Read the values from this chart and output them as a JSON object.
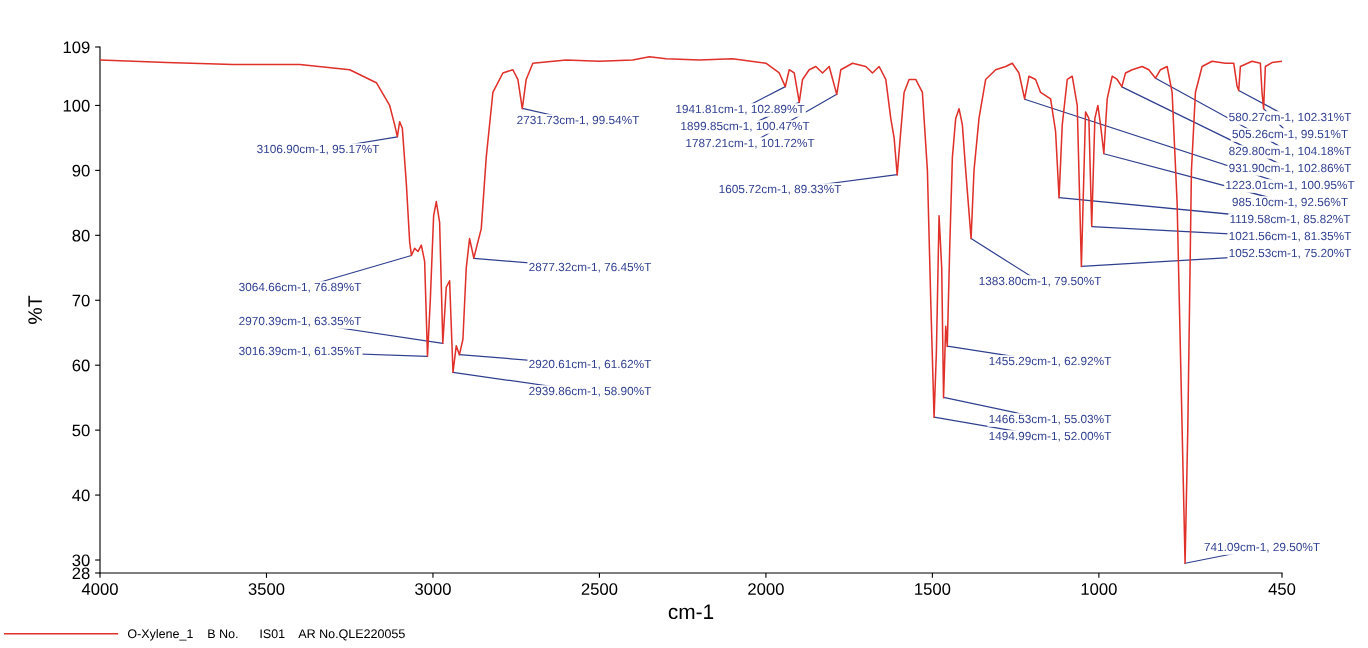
{
  "chart_data": {
    "type": "line",
    "xlabel": "cm-1",
    "ylabel": "%T",
    "xlim": [
      4000,
      450
    ],
    "xticks": [
      4000,
      3500,
      3000,
      2500,
      2000,
      1500,
      1000,
      450
    ],
    "ylim": [
      28,
      109
    ],
    "yticks": [
      28,
      30,
      40,
      50,
      60,
      70,
      80,
      90,
      100,
      109
    ],
    "grid": false,
    "legend": "bottom left",
    "marker": "none",
    "line_style": "solid",
    "series": [
      {
        "name": "O-Xylene_1    B No.      IS01    AR No.QLE220055",
        "color": "#e0302a",
        "x": [
          4000,
          3800,
          3600,
          3400,
          3250,
          3170,
          3130,
          3115,
          3106.9,
          3100,
          3092,
          3080,
          3070,
          3064.66,
          3055,
          3045,
          3035,
          3025,
          3016.39,
          3008,
          2998,
          2990,
          2980,
          2970.39,
          2960,
          2950,
          2939.86,
          2930,
          2920.61,
          2910,
          2900,
          2890,
          2877.32,
          2865,
          2855,
          2840,
          2820,
          2790,
          2760,
          2745,
          2731.73,
          2720,
          2700,
          2600,
          2500,
          2400,
          2350,
          2300,
          2200,
          2100,
          2000,
          1960,
          1941.81,
          1930,
          1915,
          1899.85,
          1890,
          1870,
          1850,
          1830,
          1810,
          1787.21,
          1775,
          1740,
          1700,
          1680,
          1660,
          1640,
          1625,
          1615,
          1605.72,
          1595,
          1585,
          1570,
          1550,
          1530,
          1515,
          1505,
          1494.99,
          1488,
          1480,
          1472,
          1466.53,
          1460,
          1455.29,
          1448,
          1440,
          1430,
          1420,
          1410,
          1400,
          1383.8,
          1375,
          1360,
          1340,
          1310,
          1280,
          1260,
          1240,
          1223.01,
          1210,
          1190,
          1175,
          1160,
          1145,
          1130,
          1119.58,
          1110,
          1095,
          1080,
          1065,
          1052.53,
          1040,
          1030,
          1021.56,
          1012,
          1003,
          995,
          985.1,
          975,
          960,
          945,
          931,
          920,
          900,
          870,
          850,
          829.8,
          815,
          795,
          780,
          765,
          752,
          741.09,
          733,
          722,
          710,
          690,
          660,
          620,
          595,
          585,
          580,
          575,
          540,
          515,
          510,
          505.26,
          500,
          480,
          450
        ],
        "values": [
          107.0,
          106.6,
          106.3,
          106.3,
          105.5,
          103.5,
          100,
          97,
          95.2,
          97.5,
          96.5,
          88,
          79,
          76.9,
          78,
          77.5,
          78.5,
          76,
          61.4,
          70,
          83,
          85.2,
          82,
          63.4,
          72,
          73,
          58.9,
          63,
          61.6,
          64,
          75,
          79.5,
          76.5,
          79,
          81,
          92,
          102,
          105,
          105.5,
          104,
          99.5,
          104,
          106.5,
          107,
          106.8,
          107,
          107.5,
          107.2,
          107.0,
          107.2,
          106.5,
          105,
          102.9,
          105.5,
          105,
          100.5,
          104,
          105.5,
          106,
          105,
          106,
          101.7,
          105.5,
          106.5,
          106,
          105,
          106,
          104,
          98,
          95,
          89.3,
          96,
          102,
          104,
          104,
          102,
          90,
          70,
          52,
          62,
          83,
          75,
          55.0,
          66,
          62.9,
          78,
          92,
          98,
          99.5,
          97,
          90,
          79.5,
          90,
          98,
          104,
          105.5,
          106,
          106.5,
          105,
          101.0,
          104.5,
          104,
          102,
          101.5,
          101,
          96,
          85.8,
          97,
          104,
          104.5,
          100,
          75.2,
          99,
          98,
          81.4,
          98,
          100,
          97,
          92.6,
          101,
          104.5,
          104,
          102.9,
          105,
          105.5,
          106,
          105.5,
          104.2,
          105.5,
          106,
          102,
          85,
          55,
          29.5,
          50,
          90,
          102,
          106,
          106.8,
          106.5,
          106.5,
          103,
          102.3,
          106,
          106.8,
          106.5,
          102,
          99.5,
          106,
          106.6,
          106.8
        ]
      }
    ],
    "annotations": [
      {
        "text": "3106.90cm-1, 95.17%T",
        "x": 3106.9,
        "y": 95.17
      },
      {
        "text": "3064.66cm-1, 76.89%T",
        "x": 3064.66,
        "y": 76.89
      },
      {
        "text": "2877.32cm-1, 76.45%T",
        "x": 2877.32,
        "y": 76.45
      },
      {
        "text": "2970.39cm-1, 63.35%T",
        "x": 2970.39,
        "y": 63.35
      },
      {
        "text": "3016.39cm-1, 61.35%T",
        "x": 3016.39,
        "y": 61.35
      },
      {
        "text": "2939.86cm-1, 58.90%T",
        "x": 2939.86,
        "y": 58.9
      },
      {
        "text": "2920.61cm-1, 61.62%T",
        "x": 2920.61,
        "y": 61.62
      },
      {
        "text": "2731.73cm-1, 99.54%T",
        "x": 2731.73,
        "y": 99.54
      },
      {
        "text": "1941.81cm-1, 102.89%T",
        "x": 1941.81,
        "y": 102.89
      },
      {
        "text": "1899.85cm-1, 100.47%T",
        "x": 1899.85,
        "y": 100.47
      },
      {
        "text": "1787.21cm-1, 101.72%T",
        "x": 1787.21,
        "y": 101.72
      },
      {
        "text": "1605.72cm-1, 89.33%T",
        "x": 1605.72,
        "y": 89.33
      },
      {
        "text": "1383.80cm-1, 79.50%T",
        "x": 1383.8,
        "y": 79.5
      },
      {
        "text": "1455.29cm-1, 62.92%T",
        "x": 1455.29,
        "y": 62.92
      },
      {
        "text": "1466.53cm-1, 55.03%T",
        "x": 1466.53,
        "y": 55.03
      },
      {
        "text": "1494.99cm-1, 52.00%T",
        "x": 1494.99,
        "y": 52.0
      },
      {
        "text": "580.27cm-1, 102.31%T",
        "x": 580,
        "y": 102.31
      },
      {
        "text": "505.26cm-1, 99.51%T",
        "x": 505.26,
        "y": 99.51
      },
      {
        "text": "829.80cm-1, 104.18%T",
        "x": 829.8,
        "y": 104.18
      },
      {
        "text": "931.90cm-1, 102.86%T",
        "x": 931,
        "y": 102.86
      },
      {
        "text": "1223.01cm-1, 100.95%T",
        "x": 1223.01,
        "y": 100.95
      },
      {
        "text": "985.10cm-1, 92.56%T",
        "x": 985.1,
        "y": 92.56
      },
      {
        "text": "1119.58cm-1, 85.82%T",
        "x": 1119.58,
        "y": 85.82
      },
      {
        "text": "1021.56cm-1, 81.35%T",
        "x": 1021.56,
        "y": 81.35
      },
      {
        "text": "1052.53cm-1, 75.20%T",
        "x": 1052.53,
        "y": 75.2
      },
      {
        "text": "741.09cm-1, 29.50%T",
        "x": 741.09,
        "y": 29.5
      }
    ]
  }
}
